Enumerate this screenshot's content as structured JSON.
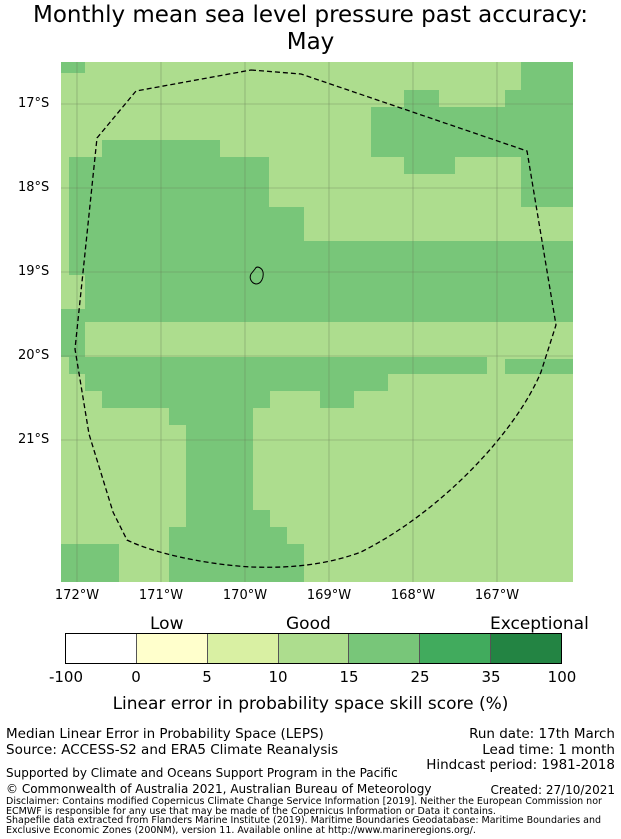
{
  "title_line1": "Monthly mean sea level pressure past accuracy:",
  "title_line2": "May",
  "map": {
    "lat_labels": [
      "17°S",
      "18°S",
      "19°S",
      "20°S",
      "21°S"
    ],
    "lon_labels": [
      "172°W",
      "171°W",
      "170°W",
      "169°W",
      "168°W",
      "167°W"
    ],
    "region": "Maritime boundary / EEZ (dashed line) around Niue"
  },
  "colorbar": {
    "categories": [
      "Low",
      "Good",
      "Exceptional"
    ],
    "ticks": [
      "-100",
      "0",
      "5",
      "10",
      "15",
      "25",
      "35",
      "100"
    ],
    "colors": [
      "#ffffff",
      "#ffffcc",
      "#d9f0a3",
      "#addd8e",
      "#78c679",
      "#41ab5d",
      "#238443"
    ],
    "label": "Linear error in probability space skill score (%)"
  },
  "footer": {
    "left1": "Median Linear Error in Probability Space (LEPS)",
    "left2": "Source: ACCESS-S2 and ERA5 Climate Reanalysis",
    "right1": "Run date: 17th March",
    "right2": "Lead time: 1 month",
    "right3": "Hindcast period: 1981-2018",
    "support": "Supported by Climate and Oceans Support Program in the Pacific",
    "copyright": "© Commonwealth of Australia 2021, Australian Bureau of Meteorology",
    "created": "Created: 27/10/2021",
    "disclaimer1": "Disclaimer: Contains modified Copernicus Climate Change Service Information [2019]. Neither the European Commission nor",
    "disclaimer2": "ECMWF is responsible for any use that may be made of the Copernicus Information or Data it contains.",
    "shapefile1": "Shapefile data extracted from Flanders Marine Institute (2019). Maritime Boundaries Geodatabase: Maritime Boundaries and",
    "shapefile2": "Exclusive Economic Zones (200NM), version 11. Available online at http://www.marineregions.org/."
  }
}
